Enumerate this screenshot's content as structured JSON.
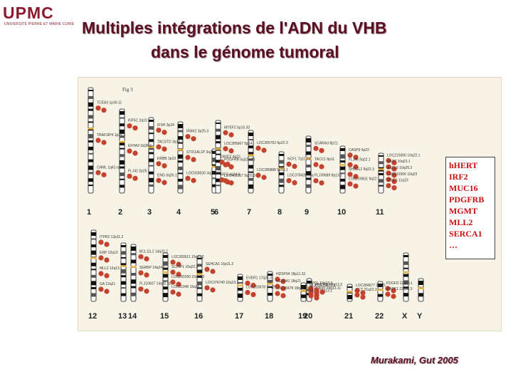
{
  "logo": {
    "text": "UPMC",
    "subtitle": "UNIVERSITÉ PIERRE ET MARIE CURIE"
  },
  "title": {
    "line1": "Multiples intégrations de l'ADN du VHB",
    "line2": "dans le génome tumoral"
  },
  "figure": {
    "label": "Fig 3",
    "chromosomes": [
      "1",
      "2",
      "3",
      "4",
      "5",
      "6",
      "7",
      "8",
      "9",
      "10",
      "11",
      "12",
      "13",
      "14",
      "15",
      "16",
      "17",
      "18",
      "19",
      "20",
      "21",
      "22",
      "X",
      "Y"
    ],
    "insertion_sites": [
      {
        "chrom": "1",
        "labels": [
          "TCEA3 1p36.11",
          "TRAF3IP4 1p34.3",
          "CHML 1q42-qter"
        ]
      },
      {
        "chrom": "2",
        "labels": [
          "KIF5C 2q23",
          "EFHA2 2q36.2",
          "FLJ42 2p25.1"
        ]
      },
      {
        "chrom": "3",
        "labels": [
          "IFSH 3p24",
          "TACSTD 3q13.3",
          "ERBB 3p23",
          "ENG 3q26.1"
        ]
      },
      {
        "chrom": "4",
        "labels": [
          "IRAK2 3p25.3",
          "STIX1AL1P 3q23.2",
          "LOC558530 3q26.32"
        ]
      },
      {
        "chrom": "5",
        "labels": [
          "GRID2 4q22",
          "IRF2 4q34.1"
        ]
      },
      {
        "chrom": "6",
        "labels": [
          "MYEF2 5p15.33",
          "LOC285667 5p14",
          "PDGFRB 5q32-q33",
          "LOC402257 5q35.3"
        ]
      },
      {
        "chrom": "7",
        "labels": [
          "LOC285762 6p22.3",
          "LOC285888 6p12.1"
        ]
      },
      {
        "chrom": "8",
        "labels": [
          "NCF1 7q11.23",
          "LOC378426 17q"
        ]
      },
      {
        "chrom": "9",
        "labels": [
          "SCARA3 8p21",
          "TACC1 8p11",
          "FLJ39689 8q13.1"
        ]
      },
      {
        "chrom": "10",
        "labels": [
          "CASP9 9p22",
          "FLJ46 9q22.1",
          "SH3GL2 9q22.3",
          "LOC169831 9q22"
        ]
      },
      {
        "chrom": "11",
        "labels": [
          "LOC219306 10q22.1",
          "HAS7 10q23.1",
          "ASCL6 10q26.2",
          "LOC219306 10q23",
          "MRCS 11q23"
        ]
      },
      {
        "chrom": "12",
        "labels": [
          "ITPR2 12p11.2",
          "ERP 12q13",
          "MLL2 12q13",
          "GA 12q21"
        ]
      },
      {
        "chrom": "14",
        "labels": [
          "BCL11L2 14q32.2",
          "SERBP 14q24.1",
          "FLJ10607 14q32.32"
        ]
      },
      {
        "chrom": "15",
        "labels": [
          "LOC283611 15q11.2",
          "SCHIP1 15q22.3",
          "LOC283150 15q22.2",
          "LOC91948 15q26.1"
        ]
      },
      {
        "chrom": "16",
        "labels": [
          "SEHCA1 16p11.2",
          "LOC374740 16q23.1"
        ]
      },
      {
        "chrom": "17",
        "labels": [
          "EVER1 17q25.3",
          "LOC283678 17q25.3"
        ]
      },
      {
        "chrom": "18",
        "labels": [
          "HDSP94 18p11.32",
          "HESD41 18q21",
          "LOC28478 18q22.1"
        ]
      },
      {
        "chrom": "19",
        "labels": [
          "APCL 19p13.3",
          "MUC16 19p13.2",
          "FLJ10650 19q13.11",
          "MLL4 19q13.1"
        ]
      },
      {
        "chrom": "20",
        "labels": [
          "MNCRB 20q13.3"
        ]
      },
      {
        "chrom": "21",
        "labels": [
          "LOC284677 21q21",
          "CCT 21q22.3"
        ]
      },
      {
        "chrom": "22",
        "labels": [
          "PDGFD 22q13.1",
          "MAPK1 22q12.3"
        ]
      }
    ]
  },
  "genes_box": [
    "hHERT",
    "IRF2",
    "MUC16",
    "PDGFRB",
    "MGMT",
    "MLL2",
    "SERCA1",
    "…"
  ],
  "citation": "Murakami, Gut 2005",
  "colors": {
    "title": "#5b0f22",
    "logo": "#8b1a2b",
    "insertion_dot": "#c4432f",
    "gene_text": "#cc1010",
    "figure_bg": "#f7f3e6"
  }
}
